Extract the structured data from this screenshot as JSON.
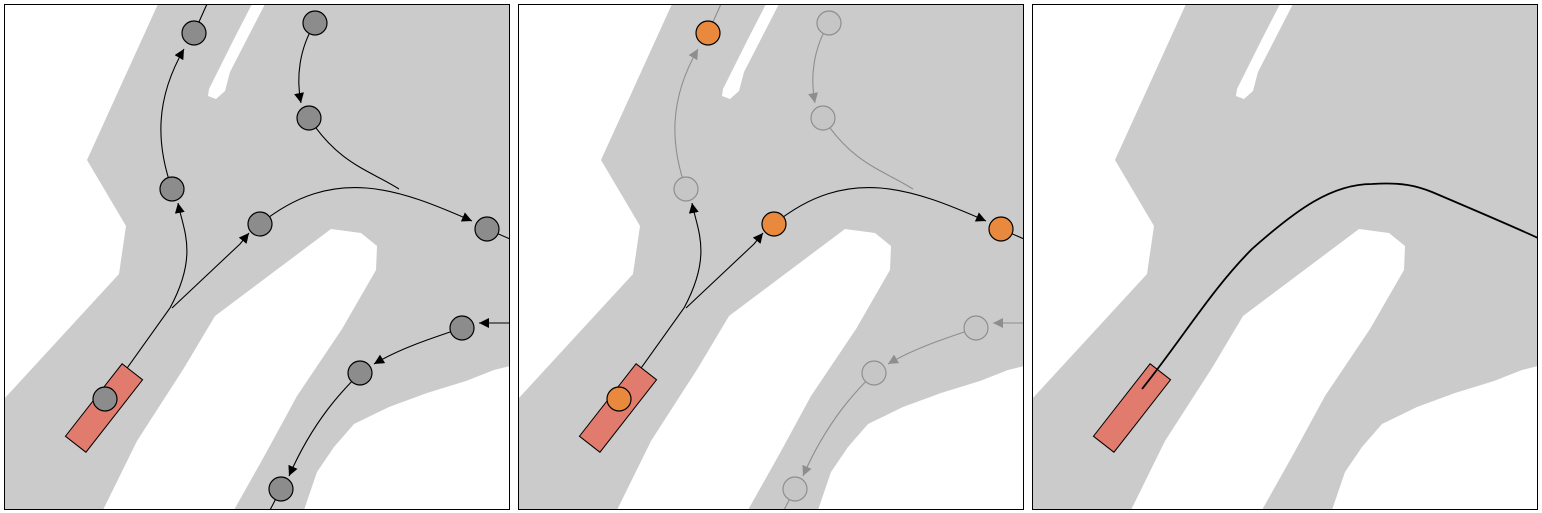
{
  "colors": {
    "background": "#ffffff",
    "road": "#cbcbcb",
    "node": "#8c8c8c",
    "node_faded": "#c6c6c6",
    "edge": "#000000",
    "edge_faded": "#8e8e8e",
    "node_highlight": "#e8893d",
    "vehicle": "#e07b6e",
    "border": "#000000"
  },
  "panels": [
    {
      "id": "lane-graph",
      "highlighted_nodes": [],
      "show_path": false,
      "graph_faded": false
    },
    {
      "id": "route-selection",
      "highlighted_nodes": [
        2,
        3,
        4
      ],
      "show_path": false,
      "graph_faded": true
    },
    {
      "id": "driving-path",
      "highlighted_nodes": [],
      "show_path": true,
      "graph_faded": false
    }
  ]
}
